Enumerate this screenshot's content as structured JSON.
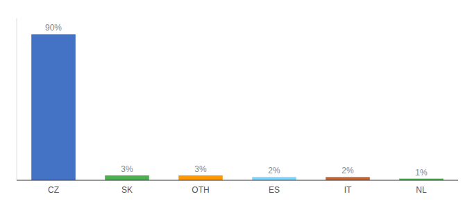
{
  "chart_data": {
    "type": "bar",
    "categories": [
      "CZ",
      "SK",
      "OTH",
      "ES",
      "IT",
      "NL"
    ],
    "values": [
      90,
      3,
      3,
      2,
      2,
      1
    ],
    "value_labels": [
      "90%",
      "3%",
      "3%",
      "2%",
      "2%",
      "1%"
    ],
    "colors": [
      "#4472c4",
      "#4caf50",
      "#ff9800",
      "#81d4fa",
      "#c0673a",
      "#4caf50"
    ],
    "ylim": [
      0,
      100
    ],
    "data_labels": true,
    "tick_labels": "x",
    "grid": false
  }
}
